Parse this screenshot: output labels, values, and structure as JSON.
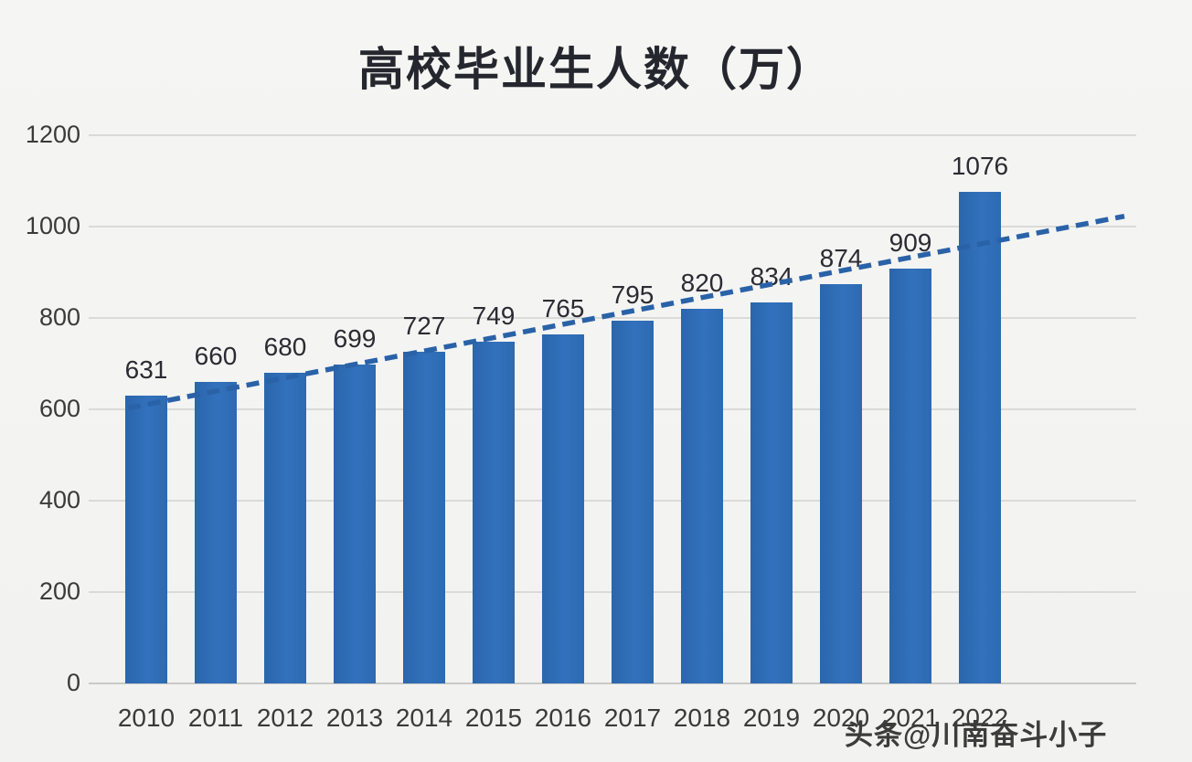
{
  "title": "高校毕业生人数（万）",
  "watermark": "头条@川南奋斗小子",
  "colors": {
    "bar": "#2e6bb2",
    "trendline": "#2a62a8",
    "title_text": "#26262e",
    "axis_text": "#3a3a3a",
    "data_label_text": "#2b2b33",
    "gridline": "#dadad8",
    "background": "#f3f3f1"
  },
  "chart_data": {
    "type": "bar",
    "title": "高校毕业生人数（万）",
    "categories": [
      "2010",
      "2011",
      "2012",
      "2013",
      "2014",
      "2015",
      "2016",
      "2017",
      "2018",
      "2019",
      "2020",
      "2021",
      "2022"
    ],
    "values": [
      631,
      660,
      680,
      699,
      727,
      749,
      765,
      795,
      820,
      834,
      874,
      909,
      1076
    ],
    "xlabel": "",
    "ylabel": "",
    "ylim": [
      0,
      1200
    ],
    "yticks": [
      0,
      200,
      400,
      600,
      800,
      1000,
      1200
    ],
    "grid": true,
    "legend": false,
    "data_labels": true,
    "trendline": "linear-dashed"
  }
}
